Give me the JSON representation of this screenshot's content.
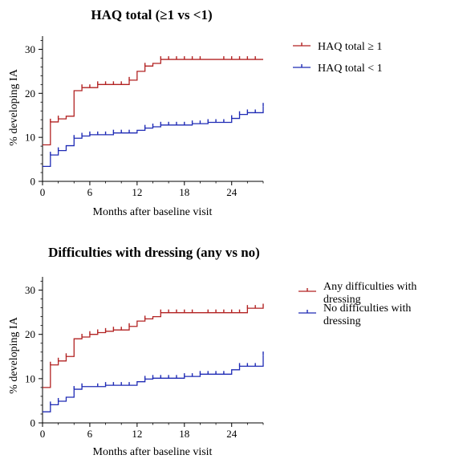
{
  "chart_data": [
    {
      "type": "line",
      "subtype": "kaplan-meier-step",
      "title": "HAQ total (≥1 vs <1)",
      "xlabel": "Months after baseline visit",
      "ylabel": "% developing IA",
      "xlim": [
        0,
        28
      ],
      "ylim": [
        0,
        33
      ],
      "xticks": [
        "0",
        "6",
        "12",
        "18",
        "24"
      ],
      "yticks": [
        "0",
        "10",
        "20",
        "30"
      ],
      "grid": false,
      "legend_position": "right",
      "series": [
        {
          "name": "HAQ total ≥ 1",
          "color": "#b22222",
          "steps": [
            [
              0,
              8.3
            ],
            [
              1,
              13.5
            ],
            [
              2,
              14.2
            ],
            [
              3,
              14.8
            ],
            [
              4,
              20.6
            ],
            [
              5,
              21.3
            ],
            [
              7,
              22.0
            ],
            [
              11,
              23.0
            ],
            [
              12,
              25.0
            ],
            [
              13,
              26.2
            ],
            [
              14,
              26.8
            ],
            [
              15,
              27.7
            ],
            [
              28,
              27.7
            ]
          ],
          "censor": [
            1,
            2,
            5,
            6,
            7,
            8,
            9,
            10,
            11,
            13,
            15,
            16,
            17,
            18,
            19,
            20,
            23,
            24,
            25,
            26,
            27
          ]
        },
        {
          "name": "HAQ total < 1",
          "color": "#1f2bb5",
          "steps": [
            [
              0,
              3.4
            ],
            [
              1,
              6.0
            ],
            [
              2,
              7.0
            ],
            [
              3,
              8.1
            ],
            [
              4,
              9.8
            ],
            [
              5,
              10.3
            ],
            [
              6,
              10.6
            ],
            [
              9,
              11.0
            ],
            [
              12,
              11.6
            ],
            [
              13,
              12.1
            ],
            [
              14,
              12.4
            ],
            [
              15,
              12.8
            ],
            [
              19,
              13.1
            ],
            [
              21,
              13.4
            ],
            [
              24,
              14.3
            ],
            [
              25,
              15.2
            ],
            [
              26,
              15.6
            ],
            [
              28,
              17.1
            ]
          ],
          "censor": [
            1,
            2,
            4,
            5,
            6,
            7,
            8,
            9,
            10,
            11,
            13,
            14,
            15,
            16,
            17,
            18,
            19,
            20,
            21,
            22,
            23,
            24,
            25,
            26,
            27,
            28
          ]
        }
      ]
    },
    {
      "type": "line",
      "subtype": "kaplan-meier-step",
      "title": "Difficulties with dressing (any vs no)",
      "xlabel": "Months after baseline visit",
      "ylabel": "% developing IA",
      "xlim": [
        0,
        28
      ],
      "ylim": [
        0,
        33
      ],
      "xticks": [
        "0",
        "6",
        "12",
        "18",
        "24"
      ],
      "yticks": [
        "0",
        "10",
        "20",
        "30"
      ],
      "grid": false,
      "legend_position": "right",
      "series": [
        {
          "name": "Any difficulties with dressing",
          "color": "#b22222",
          "steps": [
            [
              0,
              8.0
            ],
            [
              1,
              13.1
            ],
            [
              2,
              14.0
            ],
            [
              3,
              15.0
            ],
            [
              4,
              19.0
            ],
            [
              5,
              19.4
            ],
            [
              6,
              20.0
            ],
            [
              7,
              20.4
            ],
            [
              8,
              20.7
            ],
            [
              9,
              21.0
            ],
            [
              11,
              21.8
            ],
            [
              12,
              23.0
            ],
            [
              13,
              23.5
            ],
            [
              14,
              24.0
            ],
            [
              15,
              24.9
            ],
            [
              26,
              25.9
            ],
            [
              28,
              26.2
            ]
          ],
          "censor": [
            1,
            2,
            3,
            5,
            6,
            7,
            8,
            9,
            10,
            11,
            13,
            15,
            16,
            17,
            18,
            19,
            21,
            22,
            23,
            24,
            25,
            26,
            27,
            28
          ]
        },
        {
          "name": "No difficulties with dressing",
          "color": "#1f2bb5",
          "steps": [
            [
              0,
              2.5
            ],
            [
              1,
              4.1
            ],
            [
              2,
              4.9
            ],
            [
              3,
              5.8
            ],
            [
              4,
              7.6
            ],
            [
              5,
              8.2
            ],
            [
              8,
              8.5
            ],
            [
              12,
              9.3
            ],
            [
              13,
              9.9
            ],
            [
              14,
              10.1
            ],
            [
              18,
              10.5
            ],
            [
              20,
              11.0
            ],
            [
              24,
              12.0
            ],
            [
              25,
              12.8
            ],
            [
              28,
              15.4
            ]
          ],
          "censor": [
            1,
            2,
            4,
            5,
            7,
            8,
            9,
            10,
            11,
            13,
            14,
            15,
            16,
            17,
            18,
            19,
            20,
            21,
            22,
            23,
            25,
            26,
            27,
            28
          ]
        }
      ]
    }
  ]
}
